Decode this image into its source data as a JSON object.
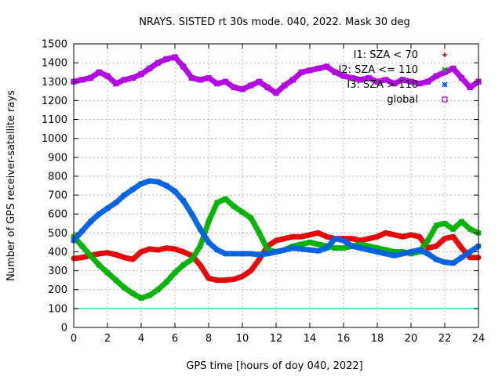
{
  "chart_data": {
    "type": "scatter",
    "title": "NRAYS. SISTED rt 30s mode. 040, 2022. Mask 30 deg",
    "xlabel": "GPS time [hours of doy 040, 2022]",
    "ylabel": "Number of GPS receiver-satellite rays",
    "xlim": [
      0,
      24
    ],
    "ylim": [
      0,
      1500
    ],
    "x_ticks": [
      0,
      2,
      4,
      6,
      8,
      10,
      12,
      14,
      16,
      18,
      20,
      22,
      24
    ],
    "y_ticks": [
      0,
      100,
      200,
      300,
      400,
      500,
      600,
      700,
      800,
      900,
      1000,
      1100,
      1200,
      1300,
      1400,
      1500
    ],
    "grid": true,
    "legend_position": "top-right",
    "reference_line": {
      "y": 100,
      "color": "#00c0c0"
    },
    "series": [
      {
        "name": "I1: SZA < 70",
        "color": "#e00000",
        "marker": "plus",
        "x": [
          0,
          0.5,
          1,
          1.5,
          2,
          2.5,
          3,
          3.5,
          4,
          4.5,
          5,
          5.5,
          6,
          6.5,
          7,
          7.5,
          8,
          8.5,
          9,
          9.5,
          10,
          10.5,
          11,
          11.5,
          12,
          12.5,
          13,
          13.5,
          14,
          14.5,
          15,
          15.5,
          16,
          16.5,
          17,
          17.5,
          18,
          18.5,
          19,
          19.5,
          20,
          20.5,
          21,
          21.5,
          22,
          22.5,
          23,
          23.5,
          24
        ],
        "y": [
          365,
          370,
          380,
          390,
          395,
          385,
          370,
          360,
          400,
          415,
          410,
          420,
          415,
          400,
          380,
          330,
          260,
          250,
          250,
          255,
          270,
          300,
          360,
          430,
          460,
          470,
          480,
          480,
          490,
          500,
          480,
          470,
          470,
          470,
          460,
          470,
          480,
          500,
          490,
          480,
          490,
          480,
          420,
          430,
          470,
          480,
          420,
          370,
          370
        ]
      },
      {
        "name": "I2: SZA <= 110",
        "color": "#00b000",
        "marker": "cross",
        "x": [
          0,
          0.5,
          1,
          1.5,
          2,
          2.5,
          3,
          3.5,
          4,
          4.5,
          5,
          5.5,
          6,
          6.5,
          7,
          7.5,
          8,
          8.5,
          9,
          9.5,
          10,
          10.5,
          11,
          11.5,
          12,
          12.5,
          13,
          13.5,
          14,
          14.5,
          15,
          15.5,
          16,
          16.5,
          17,
          17.5,
          18,
          18.5,
          19,
          19.5,
          20,
          20.5,
          21,
          21.5,
          22,
          22.5,
          23,
          23.5,
          24
        ],
        "y": [
          480,
          430,
          380,
          330,
          290,
          250,
          210,
          180,
          155,
          170,
          200,
          240,
          290,
          330,
          360,
          430,
          560,
          660,
          680,
          640,
          610,
          580,
          500,
          410,
          400,
          410,
          430,
          440,
          450,
          440,
          430,
          420,
          420,
          430,
          440,
          430,
          420,
          410,
          400,
          400,
          390,
          400,
          460,
          540,
          550,
          520,
          560,
          520,
          500
        ]
      },
      {
        "name": "I3: SZA > 110",
        "color": "#0060e0",
        "marker": "star",
        "x": [
          0,
          0.5,
          1,
          1.5,
          2,
          2.5,
          3,
          3.5,
          4,
          4.5,
          5,
          5.5,
          6,
          6.5,
          7,
          7.5,
          8,
          8.5,
          9,
          9.5,
          10,
          10.5,
          11,
          11.5,
          12,
          12.5,
          13,
          13.5,
          14,
          14.5,
          15,
          15.5,
          16,
          16.5,
          17,
          17.5,
          18,
          18.5,
          19,
          19.5,
          20,
          20.5,
          21,
          21.5,
          22,
          22.5,
          23,
          23.5,
          24
        ],
        "y": [
          460,
          510,
          560,
          600,
          630,
          660,
          700,
          730,
          760,
          775,
          770,
          750,
          720,
          670,
          600,
          520,
          450,
          410,
          390,
          390,
          390,
          390,
          385,
          390,
          400,
          410,
          420,
          415,
          410,
          405,
          420,
          470,
          460,
          430,
          420,
          410,
          400,
          390,
          380,
          390,
          400,
          410,
          390,
          360,
          345,
          340,
          370,
          400,
          430
        ]
      },
      {
        "name": "global",
        "color": "#b000e0",
        "marker": "square",
        "x": [
          0,
          0.5,
          1,
          1.5,
          2,
          2.5,
          3,
          3.5,
          4,
          4.5,
          5,
          5.5,
          6,
          6.5,
          7,
          7.5,
          8,
          8.5,
          9,
          9.5,
          10,
          10.5,
          11,
          11.5,
          12,
          12.5,
          13,
          13.5,
          14,
          14.5,
          15,
          15.5,
          16,
          16.5,
          17,
          17.5,
          18,
          18.5,
          19,
          19.5,
          20,
          20.5,
          21,
          21.5,
          22,
          22.5,
          23,
          23.5,
          24
        ],
        "y": [
          1300,
          1310,
          1320,
          1350,
          1330,
          1290,
          1310,
          1320,
          1340,
          1370,
          1400,
          1420,
          1430,
          1380,
          1320,
          1310,
          1320,
          1290,
          1300,
          1270,
          1260,
          1280,
          1300,
          1270,
          1240,
          1280,
          1310,
          1350,
          1360,
          1370,
          1380,
          1350,
          1330,
          1320,
          1310,
          1320,
          1300,
          1310,
          1290,
          1310,
          1300,
          1290,
          1300,
          1330,
          1350,
          1370,
          1320,
          1270,
          1300
        ]
      }
    ]
  }
}
